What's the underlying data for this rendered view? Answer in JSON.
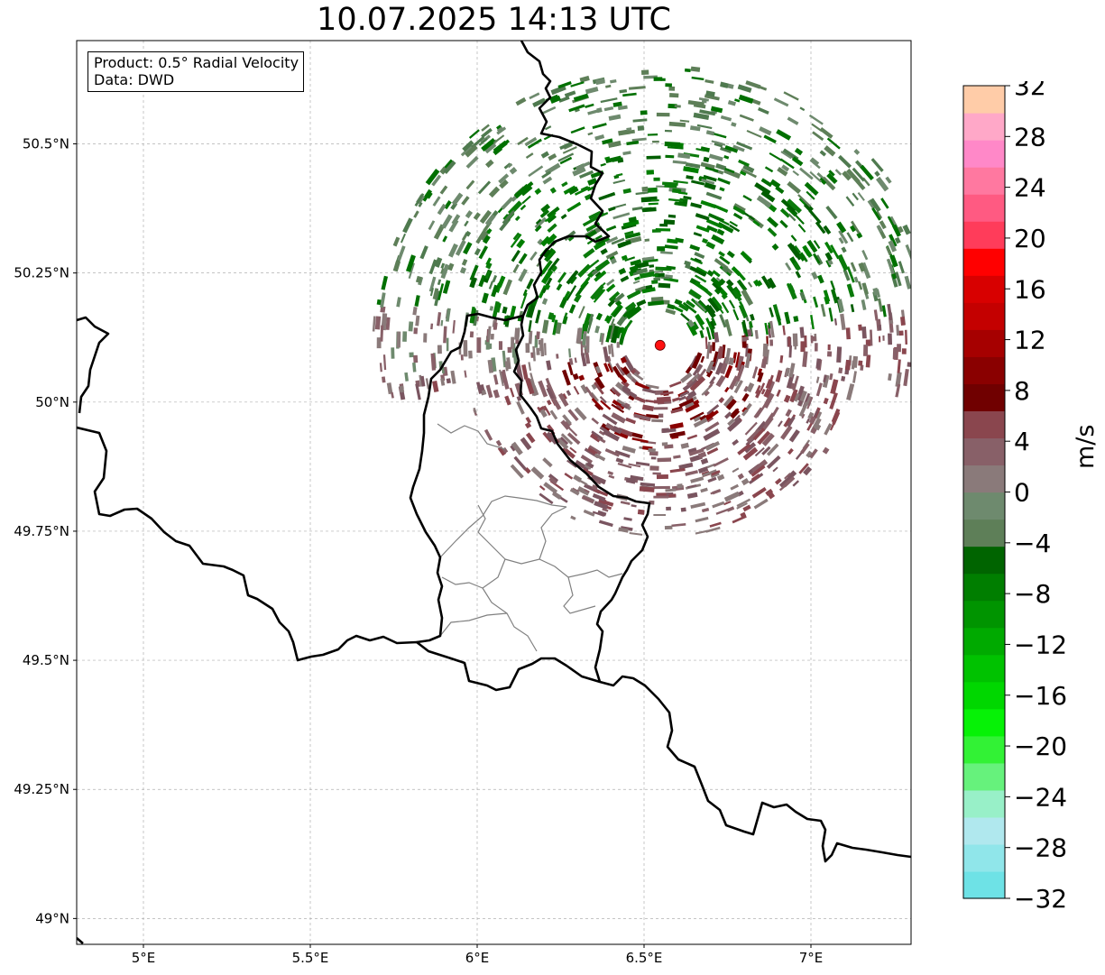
{
  "title": "10.07.2025 14:13 UTC",
  "info": {
    "product": "Product: 0.5° Radial Velocity",
    "data": "Data: DWD"
  },
  "map": {
    "lon_range": [
      4.8,
      7.3
    ],
    "lat_range": [
      48.95,
      50.7
    ],
    "lon_ticks": [
      {
        "v": 5.0,
        "label": "5°E"
      },
      {
        "v": 5.5,
        "label": "5.5°E"
      },
      {
        "v": 6.0,
        "label": "6°E"
      },
      {
        "v": 6.5,
        "label": "6.5°E"
      },
      {
        "v": 7.0,
        "label": "7°E"
      }
    ],
    "lat_ticks": [
      {
        "v": 49.0,
        "label": "49°N"
      },
      {
        "v": 49.25,
        "label": "49.25°N"
      },
      {
        "v": 49.5,
        "label": "49.5°N"
      },
      {
        "v": 49.75,
        "label": "49.75°N"
      },
      {
        "v": 50.0,
        "label": "50°N"
      },
      {
        "v": 50.25,
        "label": "50.25°N"
      },
      {
        "v": 50.5,
        "label": "50.5°N"
      }
    ],
    "radar_site": {
      "lon": 6.548,
      "lat": 50.11,
      "color": "#ff1010"
    },
    "colors": {
      "border": "#000000",
      "admin": "#808080",
      "grid": "#b0b0b0"
    }
  },
  "colorbar": {
    "unit": "m/s",
    "min": -32,
    "max": 32,
    "ticks": [
      -32,
      -28,
      -24,
      -20,
      -16,
      -12,
      -8,
      -4,
      0,
      4,
      8,
      12,
      16,
      20,
      24,
      28,
      32
    ],
    "tick_labels": [
      "−32",
      "−28",
      "−24",
      "−20",
      "−16",
      "−12",
      "−8",
      "−4",
      "0",
      "4",
      "8",
      "12",
      "16",
      "20",
      "24",
      "28",
      "32"
    ],
    "colors": [
      "#6ee2e6",
      "#90e6ea",
      "#b0e8ee",
      "#98f0c8",
      "#66f27c",
      "#32f235",
      "#06f206",
      "#00d700",
      "#00c200",
      "#00aa00",
      "#009400",
      "#007e00",
      "#006400",
      "#5e7f58",
      "#6e8a6e",
      "#8a7a7a",
      "#886068",
      "#8a464e",
      "#700000",
      "#8a0000",
      "#a60000",
      "#c40000",
      "#d80000",
      "#ff0000",
      "#ff3c5a",
      "#ff5a82",
      "#ff78a0",
      "#ff88c8",
      "#ffa8c8",
      "#ffcca8"
    ]
  }
}
